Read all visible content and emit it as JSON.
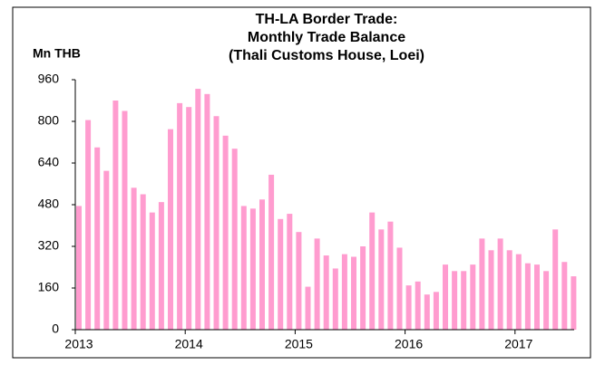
{
  "chart_data": {
    "type": "bar",
    "title": [
      "TH-LA Border Trade:",
      "Monthly Trade Balance",
      "(Thali Customs House, Loei)"
    ],
    "y_label": "Mn THB",
    "categories": [
      "2013",
      null,
      null,
      null,
      null,
      null,
      null,
      null,
      null,
      null,
      null,
      null,
      "2014",
      null,
      null,
      null,
      null,
      null,
      null,
      null,
      null,
      null,
      null,
      null,
      "2015",
      null,
      null,
      null,
      null,
      null,
      null,
      null,
      null,
      null,
      null,
      null,
      "2016",
      null,
      null,
      null,
      null,
      null,
      null,
      null,
      null,
      null,
      null,
      null,
      "2017",
      null,
      null,
      null,
      null,
      null,
      null
    ],
    "values": [
      475,
      805,
      700,
      610,
      880,
      840,
      545,
      520,
      450,
      490,
      770,
      870,
      855,
      925,
      905,
      820,
      745,
      695,
      475,
      465,
      500,
      595,
      425,
      445,
      375,
      165,
      350,
      285,
      235,
      290,
      280,
      320,
      450,
      385,
      415,
      315,
      170,
      185,
      135,
      145,
      250,
      225,
      225,
      250,
      350,
      305,
      350,
      305,
      290,
      255,
      250,
      225,
      385,
      260,
      205
    ],
    "color": "#ff9ccf",
    "ylim": [
      0,
      960
    ],
    "yticks": [
      0,
      160,
      320,
      480,
      640,
      800,
      960
    ],
    "grid": false
  }
}
